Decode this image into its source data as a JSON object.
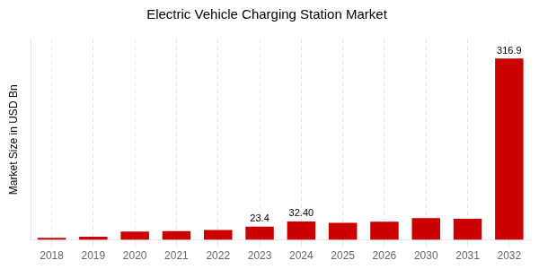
{
  "chart_data": {
    "type": "bar",
    "title": "Electric Vehicle Charging Station Market",
    "y_label": "Market Size in USD Bn",
    "categories": [
      "2018",
      "2019",
      "2020",
      "2021",
      "2022",
      "2023",
      "2024",
      "2025",
      "2026",
      "2030",
      "2031",
      "2032"
    ],
    "values": [
      3.5,
      5.5,
      14.5,
      15.5,
      17.5,
      23.4,
      32.4,
      30.0,
      32.0,
      38.0,
      37.0,
      316.9
    ],
    "value_labels": [
      null,
      null,
      null,
      null,
      null,
      "23.4",
      "32.40",
      null,
      null,
      null,
      null,
      "316.9"
    ],
    "color": "#CC0000",
    "ylim": [
      0,
      350
    ],
    "grid": true,
    "tick_labels": "x"
  }
}
